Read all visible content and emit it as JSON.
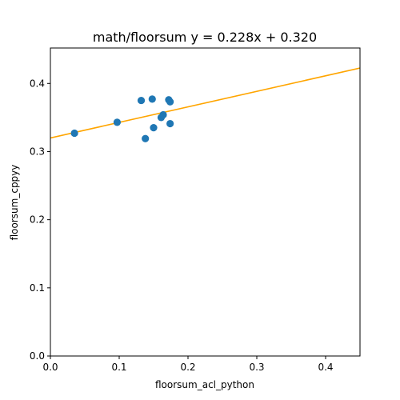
{
  "chart_data": {
    "type": "scatter",
    "title": "math/floorsum y = 0.228x + 0.320",
    "xlabel": "floorsum_acl_python",
    "ylabel": "floorsum_cppyy",
    "xlim": [
      0.0,
      0.45
    ],
    "ylim": [
      0.0,
      0.452
    ],
    "xticks": [
      0.0,
      0.1,
      0.2,
      0.3,
      0.4
    ],
    "xtick_labels": [
      "0.0",
      "0.1",
      "0.2",
      "0.3",
      "0.4"
    ],
    "yticks": [
      0.0,
      0.1,
      0.2,
      0.3,
      0.4
    ],
    "ytick_labels": [
      "0.0",
      "0.1",
      "0.2",
      "0.3",
      "0.4"
    ],
    "grid": false,
    "points": [
      {
        "x": 0.035,
        "y": 0.327
      },
      {
        "x": 0.097,
        "y": 0.343
      },
      {
        "x": 0.132,
        "y": 0.375
      },
      {
        "x": 0.138,
        "y": 0.319
      },
      {
        "x": 0.148,
        "y": 0.377
      },
      {
        "x": 0.15,
        "y": 0.335
      },
      {
        "x": 0.161,
        "y": 0.35
      },
      {
        "x": 0.164,
        "y": 0.354
      },
      {
        "x": 0.172,
        "y": 0.376
      },
      {
        "x": 0.174,
        "y": 0.373
      },
      {
        "x": 0.174,
        "y": 0.341
      }
    ],
    "fit_line": {
      "slope": 0.228,
      "intercept": 0.32
    },
    "colors": {
      "points": "#1f77b4",
      "fit_line": "#ffa500",
      "axes": "#000000"
    }
  }
}
